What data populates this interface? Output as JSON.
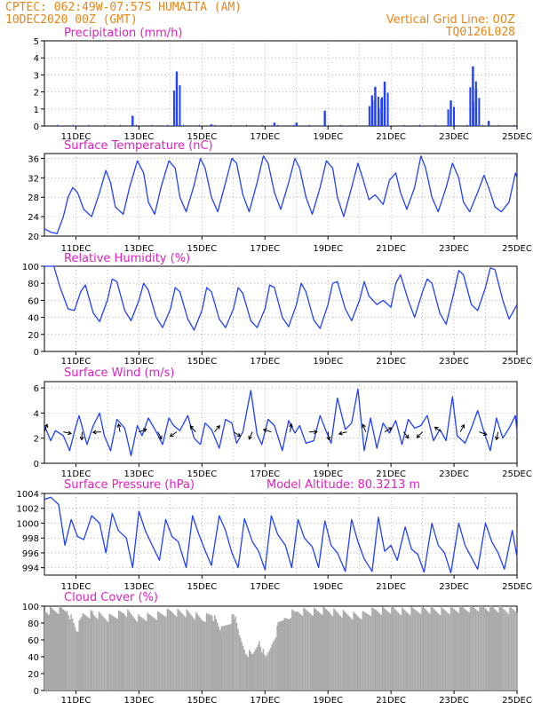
{
  "header": {
    "line1": "CPTEC:   062:49W-07:57S   HUMAITA (AM)",
    "line2": "10DEC2020 00Z (GMT)",
    "grid_note": "Vertical Grid Line: 00Z",
    "run_id": "TQ0126L028"
  },
  "colors": {
    "header_text": "#e8861a",
    "panel_title": "#e020c0",
    "series_line": "#2040ff",
    "cloud_fill": "#a9a9a9",
    "grid": "#888888"
  },
  "x_axis": {
    "start": "10DEC2020 00Z",
    "end": "25DEC2020 00Z",
    "tick_labels": [
      "11DEC",
      "13DEC",
      "15DEC",
      "17DEC",
      "19DEC",
      "21DEC",
      "23DEC",
      "25DEC"
    ],
    "vertical_grid": "00Z daily"
  },
  "chart_data": [
    {
      "type": "bar",
      "title": "Precipitation (mm/h)",
      "ylim": [
        0,
        5
      ],
      "yticks": [
        "0",
        "1",
        "2",
        "3",
        "4",
        "5"
      ],
      "grid": true,
      "x_unit": "day of December 2020 (fractional)",
      "events": [
        {
          "t": 12.8,
          "v": 0.6
        },
        {
          "t": 14.2,
          "v": 3.2
        },
        {
          "t": 15.3,
          "v": 0.1
        },
        {
          "t": 17.3,
          "v": 0.2
        },
        {
          "t": 18.0,
          "v": 0.2
        },
        {
          "t": 18.9,
          "v": 0.9
        },
        {
          "t": 20.4,
          "v": 1.8
        },
        {
          "t": 20.5,
          "v": 2.3
        },
        {
          "t": 20.7,
          "v": 1.6
        },
        {
          "t": 20.8,
          "v": 2.6
        },
        {
          "t": 22.9,
          "v": 1.5
        },
        {
          "t": 23.6,
          "v": 3.5
        },
        {
          "t": 23.7,
          "v": 2.2
        },
        {
          "t": 24.1,
          "v": 0.3
        }
      ]
    },
    {
      "type": "line",
      "title": "Surface Temperature (nC)",
      "ylim": [
        20,
        37
      ],
      "yticks": [
        "20",
        "24",
        "28",
        "32",
        "36"
      ],
      "grid": true,
      "series": [
        {
          "x": [
            10.0,
            10.2,
            10.4,
            10.6,
            10.75,
            10.9,
            11.05,
            11.25,
            11.5,
            11.75,
            11.95,
            12.1,
            12.25,
            12.5,
            12.7,
            12.95,
            13.15,
            13.3,
            13.5,
            13.7,
            13.95,
            14.15,
            14.3,
            14.5,
            14.75,
            14.95,
            15.1,
            15.3,
            15.5,
            15.75,
            15.95,
            16.1,
            16.3,
            16.5,
            16.75,
            16.95,
            17.1,
            17.3,
            17.5,
            17.75,
            17.95,
            18.1,
            18.3,
            18.5,
            18.75,
            18.95,
            19.15,
            19.3,
            19.5,
            19.75,
            19.95,
            20.1,
            20.3,
            20.5,
            20.75,
            20.95,
            21.15,
            21.3,
            21.5,
            21.75,
            21.95,
            22.1,
            22.3,
            22.5,
            22.75,
            22.95,
            23.15,
            23.3,
            23.5,
            23.75,
            23.95,
            24.1,
            24.3,
            24.5,
            24.75,
            24.95,
            25.0
          ],
          "y": [
            21.5,
            20.8,
            20.5,
            24,
            28,
            30,
            29,
            25.5,
            24,
            29,
            33.5,
            31,
            26,
            24.5,
            30,
            35.5,
            33,
            27,
            24.5,
            30,
            35.5,
            34,
            28,
            25,
            30.5,
            36,
            34,
            28,
            25,
            31,
            36,
            35,
            28.5,
            25,
            31,
            36.5,
            35,
            29,
            25.5,
            31,
            36,
            34,
            28,
            24.5,
            30,
            35.5,
            34,
            28,
            24,
            30,
            35,
            32,
            27.5,
            28.5,
            26.5,
            31.5,
            33,
            29,
            25.5,
            30,
            36.5,
            34,
            28,
            25,
            30,
            35,
            32,
            27,
            25,
            29,
            32.5,
            30,
            26,
            25,
            27,
            33,
            32
          ]
        }
      ]
    },
    {
      "type": "line",
      "title": "Relative Humidity (%)",
      "ylim": [
        0,
        100
      ],
      "yticks": [
        "0",
        "20",
        "40",
        "60",
        "80",
        "100"
      ],
      "grid": true,
      "series": [
        {
          "x": [
            10.0,
            10.3,
            10.5,
            10.75,
            10.95,
            11.15,
            11.3,
            11.55,
            11.75,
            12.0,
            12.15,
            12.3,
            12.55,
            12.75,
            13.0,
            13.15,
            13.3,
            13.55,
            13.75,
            14.0,
            14.15,
            14.3,
            14.55,
            14.75,
            15.0,
            15.15,
            15.3,
            15.55,
            15.75,
            16.0,
            16.15,
            16.3,
            16.55,
            16.75,
            17.0,
            17.15,
            17.3,
            17.55,
            17.75,
            18.0,
            18.15,
            18.3,
            18.55,
            18.75,
            19.0,
            19.15,
            19.3,
            19.55,
            19.75,
            20.0,
            20.15,
            20.3,
            20.55,
            20.75,
            21.0,
            21.15,
            21.3,
            21.55,
            21.75,
            22.0,
            22.15,
            22.3,
            22.55,
            22.75,
            23.0,
            23.15,
            23.3,
            23.55,
            23.75,
            24.0,
            24.15,
            24.3,
            24.55,
            24.75,
            25.0
          ],
          "y": [
            100,
            100,
            75,
            50,
            48,
            70,
            78,
            45,
            35,
            60,
            85,
            82,
            48,
            36,
            60,
            80,
            72,
            40,
            28,
            50,
            75,
            70,
            38,
            25,
            48,
            75,
            70,
            38,
            28,
            50,
            75,
            68,
            36,
            28,
            50,
            78,
            75,
            40,
            29,
            55,
            80,
            70,
            37,
            27,
            55,
            80,
            82,
            50,
            36,
            60,
            82,
            65,
            55,
            60,
            52,
            80,
            90,
            60,
            40,
            70,
            85,
            80,
            45,
            32,
            70,
            95,
            90,
            55,
            48,
            75,
            98,
            96,
            60,
            38,
            55
          ]
        }
      ]
    },
    {
      "type": "line",
      "title": "Surface Wind (m/s)",
      "ylim": [
        0,
        6.5
      ],
      "yticks": [
        "0",
        "2",
        "4",
        "6"
      ],
      "grid": true,
      "series": [
        {
          "x": [
            10.0,
            10.2,
            10.35,
            10.6,
            10.8,
            10.95,
            11.1,
            11.35,
            11.55,
            11.75,
            11.9,
            12.1,
            12.3,
            12.55,
            12.75,
            12.95,
            13.1,
            13.3,
            13.55,
            13.75,
            13.95,
            14.1,
            14.3,
            14.55,
            14.75,
            14.95,
            15.1,
            15.3,
            15.55,
            15.75,
            15.95,
            16.1,
            16.3,
            16.55,
            16.75,
            16.9,
            17.1,
            17.3,
            17.55,
            17.75,
            17.95,
            18.1,
            18.3,
            18.55,
            18.75,
            18.95,
            19.1,
            19.3,
            19.55,
            19.75,
            19.95,
            20.15,
            20.35,
            20.55,
            20.75,
            20.95,
            21.15,
            21.35,
            21.55,
            21.75,
            21.95,
            22.15,
            22.35,
            22.55,
            22.75,
            22.95,
            23.1,
            23.35,
            23.55,
            23.75,
            23.95,
            24.15,
            24.35,
            24.55,
            24.75,
            24.95,
            25.0
          ],
          "y": [
            3,
            1.8,
            2.6,
            2.2,
            1,
            2.5,
            3.8,
            1.5,
            3,
            4,
            2.2,
            1,
            3.5,
            2.8,
            0.6,
            3,
            2.2,
            3.6,
            2.5,
            1.5,
            3.6,
            3,
            2.6,
            3.8,
            2,
            1.5,
            3.2,
            2.7,
            1.2,
            3.5,
            3.2,
            1.6,
            2.5,
            5.8,
            2.3,
            1.5,
            3.5,
            3,
            1,
            3.4,
            2.4,
            3,
            1.6,
            1.8,
            3.8,
            2.5,
            1.6,
            5.2,
            2.7,
            3.2,
            5.9,
            1,
            3.6,
            1.2,
            3.2,
            2.4,
            3.4,
            1.5,
            3.5,
            2.8,
            3,
            3.8,
            1.8,
            2.7,
            1.8,
            5.3,
            2.2,
            1.6,
            2.8,
            4.2,
            2.5,
            1,
            3.6,
            2,
            2.8,
            3.8,
            2.5
          ]
        }
      ],
      "arrows_legend": "wind direction arrows"
    },
    {
      "type": "line",
      "title": "Surface Pressure (hPa)",
      "annotation": "Model Altitude: 80.3213 m",
      "ylim": [
        993,
        1004
      ],
      "yticks": [
        "994",
        "996",
        "998",
        "1000",
        "1002",
        "1004"
      ],
      "grid": true,
      "series": [
        {
          "x": [
            10.0,
            10.2,
            10.45,
            10.65,
            10.85,
            11.05,
            11.25,
            11.5,
            11.75,
            11.95,
            12.15,
            12.35,
            12.6,
            12.8,
            13.0,
            13.2,
            13.4,
            13.65,
            13.85,
            14.05,
            14.25,
            14.5,
            14.7,
            14.9,
            15.1,
            15.3,
            15.55,
            15.75,
            15.95,
            16.15,
            16.35,
            16.6,
            16.8,
            17.0,
            17.2,
            17.4,
            17.65,
            17.85,
            18.05,
            18.25,
            18.5,
            18.7,
            18.9,
            19.1,
            19.3,
            19.55,
            19.75,
            19.95,
            20.15,
            20.4,
            20.6,
            20.8,
            21.0,
            21.2,
            21.45,
            21.65,
            21.85,
            22.05,
            22.3,
            22.5,
            22.7,
            22.9,
            23.15,
            23.35,
            23.55,
            23.75,
            24.0,
            24.2,
            24.4,
            24.6,
            24.85,
            25.0
          ],
          "y": [
            1003.2,
            1003.5,
            1002.5,
            997,
            1000.5,
            998.2,
            997.8,
            1001,
            1000,
            996,
            1001.3,
            999,
            998,
            994,
            1001.6,
            999,
            997.2,
            995,
            1000.5,
            998.2,
            997.5,
            994,
            1001,
            998.5,
            996.3,
            994.3,
            1001,
            999,
            996,
            994,
            1000.6,
            997.5,
            996.2,
            993.7,
            1001,
            998.5,
            997,
            994,
            1000.5,
            998,
            996.8,
            994,
            1000.3,
            997,
            996,
            993.5,
            1000.5,
            997.5,
            995.2,
            993.5,
            1000.8,
            996.2,
            997,
            995,
            999.5,
            996.5,
            995.8,
            993.4,
            1000,
            997,
            996,
            993.3,
            1000,
            997,
            995.4,
            993.8,
            1000,
            997.5,
            996,
            993.8,
            999,
            995.4
          ]
        }
      ]
    },
    {
      "type": "bar",
      "title": "Cloud Cover (%)",
      "ylim": [
        0,
        100
      ],
      "yticks": [
        "0",
        "20",
        "40",
        "60",
        "80",
        "100"
      ],
      "grid": false,
      "series": [
        {
          "x": [
            10.0,
            10.7,
            11.0,
            11.2,
            11.5,
            12.0,
            12.5,
            13.0,
            13.5,
            14.0,
            14.5,
            15.0,
            15.3,
            15.6,
            16.0,
            16.2,
            16.4,
            16.6,
            16.8,
            17.0,
            17.2,
            17.4,
            17.6,
            17.8,
            18.0,
            18.5,
            19.0,
            19.5,
            20.0,
            20.5,
            21.0,
            21.5,
            22.0,
            22.5,
            23.0,
            23.5,
            24.0,
            24.5,
            25.0
          ],
          "y": [
            94,
            95,
            70,
            88,
            90,
            86,
            92,
            85,
            88,
            93,
            91,
            84,
            90,
            70,
            88,
            60,
            45,
            40,
            60,
            35,
            55,
            75,
            85,
            90,
            92,
            93,
            94,
            90,
            88,
            94,
            95,
            93,
            96,
            94,
            95,
            97,
            98,
            96,
            95
          ]
        }
      ]
    }
  ]
}
